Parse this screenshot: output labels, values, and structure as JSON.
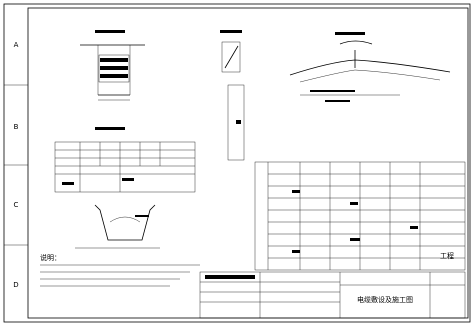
{
  "row_labels": [
    "A",
    "B",
    "C",
    "D"
  ],
  "notes": {
    "heading": "说明："
  },
  "title_block": {
    "project": "工程",
    "drawing_title": "电缆敷设及施工图"
  }
}
